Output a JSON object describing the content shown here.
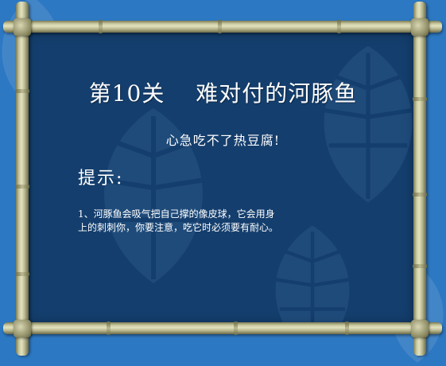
{
  "colors": {
    "outer_background": "#2d78c2",
    "board_background": "#143e6d",
    "text": "#ffffff",
    "bamboo": "#c9c9a0"
  },
  "level": {
    "title": "第10关　 难对付的河豚鱼",
    "subtitle": "心急吃不了热豆腐!",
    "hint_heading": "提示:",
    "hint_lines": [
      "1、河豚鱼会吸气把自己撑的像皮球，它会用身",
      "上的刺刺你，你要注意，吃它时必须要有耐心。"
    ]
  },
  "decor": {
    "frame": "bamboo-frame",
    "background_pattern": "leaf-pattern"
  }
}
